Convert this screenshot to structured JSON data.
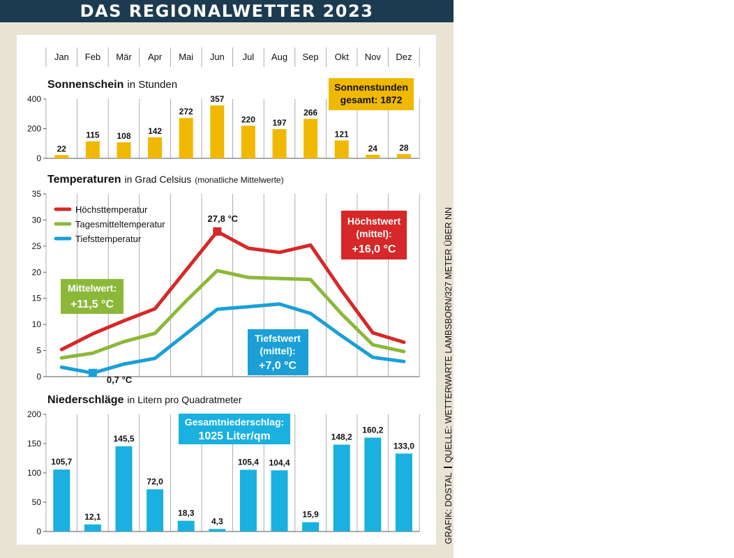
{
  "header": {
    "title": "DAS REGIONALWETTER 2023"
  },
  "months": [
    "Jan",
    "Feb",
    "Mär",
    "Apr",
    "Mai",
    "Jun",
    "Jul",
    "Aug",
    "Sep",
    "Okt",
    "Nov",
    "Dez"
  ],
  "chart_data": [
    {
      "type": "bar",
      "title": "Sonnenschein",
      "subtitle": "in Stunden",
      "categories": [
        "Jan",
        "Feb",
        "Mär",
        "Apr",
        "Mai",
        "Jun",
        "Jul",
        "Aug",
        "Sep",
        "Okt",
        "Nov",
        "Dez"
      ],
      "values": [
        22,
        115,
        108,
        142,
        272,
        357,
        220,
        197,
        266,
        121,
        24,
        28
      ],
      "value_labels": [
        "22",
        "115",
        "108",
        "142",
        "272",
        "357",
        "220",
        "197",
        "266",
        "121",
        "24",
        "28"
      ],
      "yticks": [
        0,
        200,
        400
      ],
      "ylim": [
        0,
        400
      ],
      "color": "#f0b800",
      "annotation": {
        "line1": "Sonnenstunden",
        "line2": "gesamt: 1872"
      }
    },
    {
      "type": "line",
      "title": "Temperaturen",
      "subtitle": "in Grad Celsius",
      "subtitle2": "(monatliche Mittelwerte)",
      "categories": [
        "Jan",
        "Feb",
        "Mär",
        "Apr",
        "Mai",
        "Jun",
        "Jul",
        "Aug",
        "Sep",
        "Okt",
        "Nov",
        "Dez"
      ],
      "yticks": [
        0,
        5,
        10,
        15,
        20,
        25,
        30,
        35
      ],
      "ylim": [
        0,
        35
      ],
      "series": [
        {
          "name": "Höchsttemperatur",
          "color": "#d62828",
          "values": [
            5.2,
            8.2,
            10.7,
            13.0,
            20.4,
            27.8,
            24.6,
            23.8,
            25.2,
            16.5,
            8.4,
            6.6
          ]
        },
        {
          "name": "Tagesmitteltemperatur",
          "color": "#8cb83a",
          "values": [
            3.6,
            4.5,
            6.7,
            8.3,
            14.5,
            20.3,
            19.0,
            18.8,
            18.6,
            12.0,
            6.1,
            4.8
          ]
        },
        {
          "name": "Tiefsttemperatur",
          "color": "#1a9fd6",
          "values": [
            1.8,
            0.7,
            2.4,
            3.5,
            8.2,
            12.9,
            13.4,
            13.9,
            12.1,
            7.8,
            3.7,
            2.9
          ]
        }
      ],
      "max_label": "27,8 °C",
      "min_label": "0,7 °C",
      "annotations": [
        {
          "line1": "Höchstwert",
          "line2": "(mittel):",
          "line3": "+16,0 °C",
          "color": "#d62828"
        },
        {
          "line1": "Mittelwert:",
          "line2": "+11,5 °C",
          "color": "#8cb83a"
        },
        {
          "line1": "Tiefstwert",
          "line2": "(mittel):",
          "line3": "+7,0 °C",
          "color": "#1a9fd6"
        }
      ]
    },
    {
      "type": "bar",
      "title": "Niederschläge",
      "subtitle": "in Litern pro Quadratmeter",
      "categories": [
        "Jan",
        "Feb",
        "Mär",
        "Apr",
        "Mai",
        "Jun",
        "Jul",
        "Aug",
        "Sep",
        "Okt",
        "Nov",
        "Dez"
      ],
      "values": [
        105.7,
        12.1,
        145.5,
        72.0,
        18.3,
        4.3,
        105.4,
        104.4,
        15.9,
        148.2,
        160.2,
        133.0
      ],
      "value_labels": [
        "105,7",
        "12,1",
        "145,5",
        "72,0",
        "18,3",
        "4,3",
        "105,4",
        "104,4",
        "15,9",
        "148,2",
        "160,2",
        "133,0"
      ],
      "yticks": [
        0,
        50,
        100,
        150,
        200
      ],
      "ylim": [
        0,
        200
      ],
      "color": "#1ab0e0",
      "annotation": {
        "line1": "Gesamtniederschlag:",
        "line2": "1025 Liter/qm"
      }
    }
  ],
  "credit": {
    "left": "GRAFIK: DOSTAL",
    "right": "QUELLE: WETTERWARTE LAMBSBORN/327 METER ÜBER NN"
  }
}
